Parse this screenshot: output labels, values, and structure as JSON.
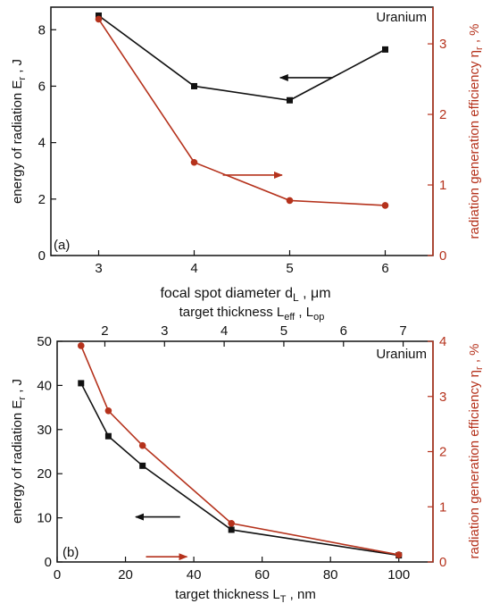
{
  "colors": {
    "black": "#111111",
    "red": "#b5321c"
  },
  "chart_data": [
    {
      "type": "line",
      "panel_label": "(a)",
      "material_label": "Uranium",
      "xlabel_main": "focal spot diameter d",
      "xlabel_sub": "L",
      "xlabel_unit": " , μm",
      "ylabel_left_main": "energy of radiation E",
      "ylabel_left_sub": "r",
      "ylabel_left_unit": " , J",
      "ylabel_right_main": "radiation generation efficiency η",
      "ylabel_right_sub": "r",
      "ylabel_right_unit": " , %",
      "xlim": [
        2.5,
        6.5
      ],
      "ylim_left": [
        0,
        8.8
      ],
      "ylim_right": [
        0,
        3.52
      ],
      "xticks": [
        "3",
        "4",
        "5",
        "6"
      ],
      "xtick_values": [
        3,
        4,
        5,
        6
      ],
      "yticks_left": [
        "0",
        "2",
        "4",
        "6",
        "8"
      ],
      "ytick_values_left": [
        0,
        2,
        4,
        6,
        8
      ],
      "yticks_right": [
        "0",
        "1",
        "2",
        "3"
      ],
      "ytick_values_right": [
        0,
        1,
        2,
        3
      ],
      "series": [
        {
          "axis": "left",
          "color": "#111111",
          "marker": "square",
          "x": [
            3,
            4,
            5,
            6
          ],
          "y": [
            8.5,
            6.0,
            5.5,
            7.3
          ]
        },
        {
          "axis": "right",
          "color": "#b5321c",
          "marker": "circle",
          "x": [
            3,
            4,
            5,
            6
          ],
          "y": [
            3.35,
            1.32,
            0.78,
            0.71
          ]
        }
      ],
      "arrows": [
        {
          "color": "#111111",
          "direction": "left",
          "from": [
            5.45,
            6.3
          ],
          "to": [
            4.9,
            6.3
          ]
        },
        {
          "color": "#b5321c",
          "direction": "right",
          "from": [
            4.3,
            2.85
          ],
          "to": [
            4.92,
            2.85
          ]
        }
      ]
    },
    {
      "type": "line",
      "panel_label": "(b)",
      "material_label": "Uranium",
      "xlabel_main": "target thickness L",
      "xlabel_sub": "T",
      "xlabel_unit": " , nm",
      "xlabel_top_main": "target thickness L",
      "xlabel_top_sub1": "eff",
      "xlabel_top_mid": " , L",
      "xlabel_top_sub2": "op",
      "ylabel_left_main": "energy of radiation E",
      "ylabel_left_sub": "r",
      "ylabel_left_unit": " , J",
      "ylabel_right_main": "radiation generation efficiency η",
      "ylabel_right_sub": "r",
      "ylabel_right_unit": " , %",
      "xlim": [
        0,
        110
      ],
      "ylim_left": [
        0,
        50
      ],
      "ylim_right": [
        0,
        4
      ],
      "xticks": [
        "0",
        "20",
        "40",
        "60",
        "80",
        "100"
      ],
      "xtick_values": [
        0,
        20,
        40,
        60,
        80,
        100
      ],
      "xticks_top": [
        "2",
        "3",
        "4",
        "5",
        "6",
        "7"
      ],
      "xtick_values_top": [
        2,
        3,
        4,
        5,
        6,
        7
      ],
      "xlim_top": [
        1.2,
        7.5
      ],
      "yticks_left": [
        "0",
        "10",
        "20",
        "30",
        "40",
        "50"
      ],
      "ytick_values_left": [
        0,
        10,
        20,
        30,
        40,
        50
      ],
      "yticks_right": [
        "0",
        "1",
        "2",
        "3",
        "4"
      ],
      "ytick_values_right": [
        0,
        1,
        2,
        3,
        4
      ],
      "series": [
        {
          "axis": "left",
          "color": "#111111",
          "marker": "square",
          "x": [
            7,
            15,
            25,
            51,
            100
          ],
          "y": [
            40.5,
            28.5,
            21.8,
            7.3,
            1.5
          ]
        },
        {
          "axis": "right",
          "color": "#b5321c",
          "marker": "circle",
          "x": [
            7,
            15,
            25,
            51,
            100
          ],
          "y": [
            3.92,
            2.74,
            2.11,
            0.7,
            0.13
          ]
        }
      ],
      "arrows": [
        {
          "color": "#111111",
          "direction": "left",
          "from": [
            36,
            10.2
          ],
          "to": [
            23,
            10.2
          ]
        },
        {
          "color": "#b5321c",
          "direction": "right",
          "from": [
            26,
            1.18
          ],
          "to": [
            38,
            1.18
          ]
        }
      ]
    }
  ]
}
